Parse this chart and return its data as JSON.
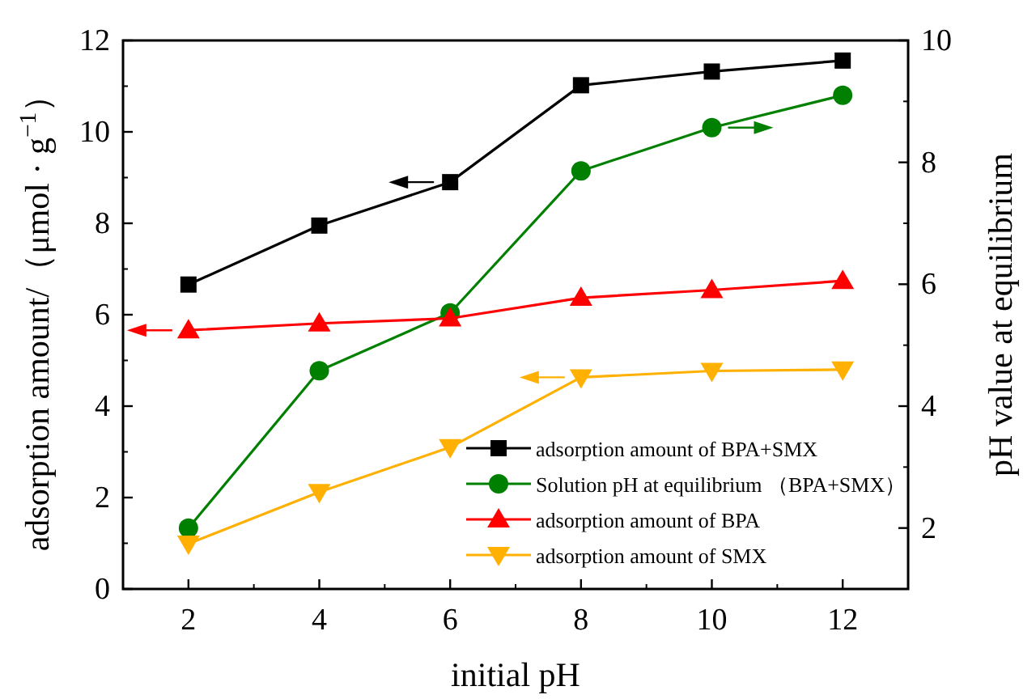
{
  "chart_data": {
    "type": "line",
    "xlabel": "initial pH",
    "ylabel": "adsorption amount/（μmol · g$^{−1}$）",
    "y2label": "pH value at equilibrium",
    "x": [
      2,
      4,
      6,
      8,
      10,
      12
    ],
    "xlim": [
      1,
      13
    ],
    "xticks": [
      2,
      4,
      6,
      8,
      10,
      12
    ],
    "ylim": [
      0,
      12
    ],
    "yticks": [
      0,
      2,
      4,
      6,
      8,
      10,
      12
    ],
    "y2lim": [
      1,
      10
    ],
    "y2ticks": [
      2,
      4,
      6,
      8,
      10
    ],
    "grid": false,
    "legend": "bottom right",
    "line_style": "solid",
    "series": [
      {
        "name": "adsorption amount of BPA+SMX",
        "color": "#000000",
        "marker": "square",
        "values": [
          6.66,
          7.95,
          8.9,
          11.02,
          11.32,
          11.56
        ]
      },
      {
        "name": "Solution pH at equilibrium （BPA+SMX）",
        "color": "#008000",
        "marker": "circle",
        "axis": "y2",
        "values": [
          2.0,
          4.58,
          5.53,
          7.86,
          8.57,
          9.1
        ]
      },
      {
        "name": "adsorption amount of BPA",
        "color": "#ff0000",
        "marker": "triangle",
        "values": [
          5.66,
          5.81,
          5.92,
          6.37,
          6.54,
          6.74
        ]
      },
      {
        "name": "adsorption amount of SMX",
        "color": "#ffb000",
        "marker": "triangle_down",
        "values": [
          0.99,
          2.12,
          3.1,
          4.63,
          4.77,
          4.8
        ]
      }
    ]
  }
}
